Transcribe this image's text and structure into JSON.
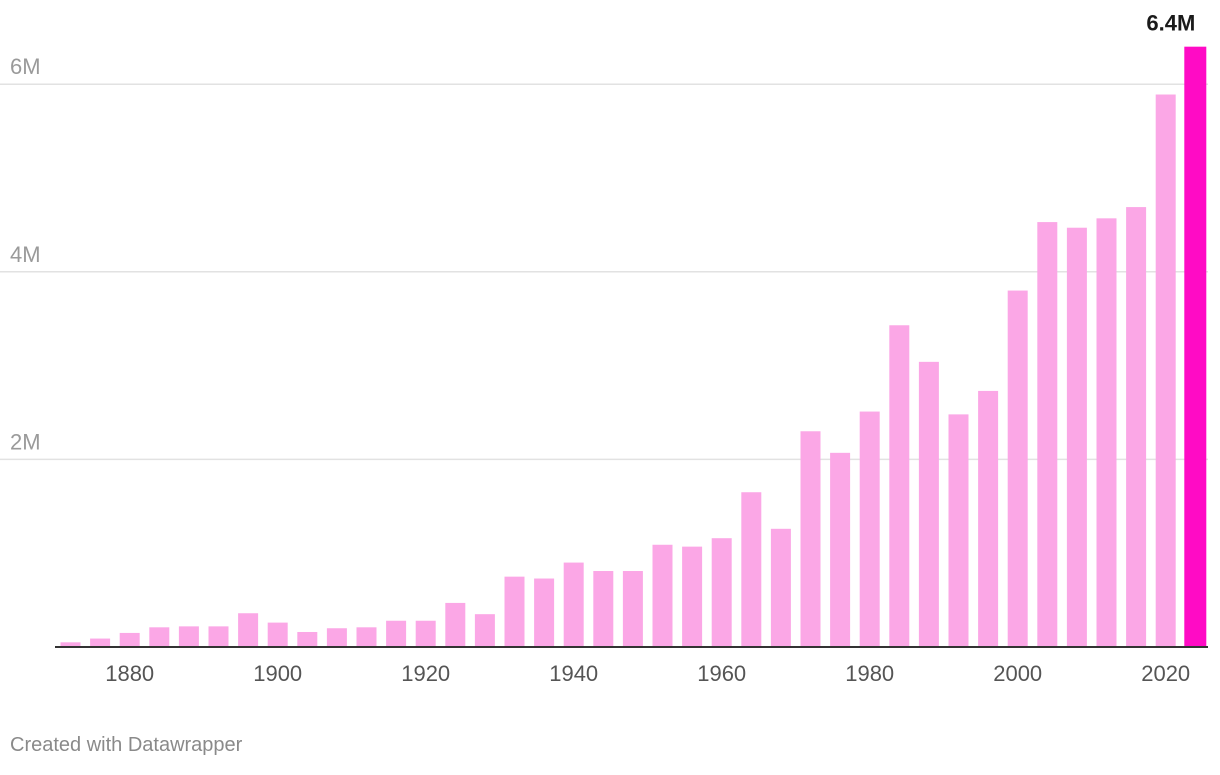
{
  "chart_data": {
    "type": "bar",
    "title": "",
    "xlabel": "",
    "ylabel": "",
    "x": [
      1872,
      1876,
      1880,
      1884,
      1888,
      1892,
      1896,
      1900,
      1904,
      1908,
      1912,
      1916,
      1920,
      1924,
      1928,
      1932,
      1936,
      1940,
      1944,
      1948,
      1952,
      1956,
      1960,
      1964,
      1968,
      1972,
      1976,
      1980,
      1984,
      1988,
      1992,
      1996,
      2000,
      2004,
      2008,
      2012,
      2016,
      2020,
      2024
    ],
    "values": [
      0.05,
      0.09,
      0.15,
      0.21,
      0.22,
      0.22,
      0.36,
      0.26,
      0.16,
      0.2,
      0.21,
      0.28,
      0.28,
      0.47,
      0.35,
      0.75,
      0.73,
      0.9,
      0.81,
      0.81,
      1.09,
      1.07,
      1.16,
      1.65,
      1.26,
      2.3,
      2.07,
      2.51,
      3.43,
      3.04,
      2.48,
      2.73,
      3.8,
      4.53,
      4.47,
      4.57,
      4.69,
      5.89,
      6.4
    ],
    "unit": "M",
    "highlight": {
      "index": 38,
      "label": "6.4M"
    },
    "ylim": [
      0,
      6.4
    ],
    "yticks": [
      {
        "value": 2,
        "label": "2M"
      },
      {
        "value": 4,
        "label": "4M"
      },
      {
        "value": 6,
        "label": "6M"
      }
    ],
    "xticks": [
      {
        "value": 1880,
        "label": "1880"
      },
      {
        "value": 1900,
        "label": "1900"
      },
      {
        "value": 1920,
        "label": "1920"
      },
      {
        "value": 1940,
        "label": "1940"
      },
      {
        "value": 1960,
        "label": "1960"
      },
      {
        "value": 1980,
        "label": "1980"
      },
      {
        "value": 2000,
        "label": "2000"
      },
      {
        "value": 2020,
        "label": "2020"
      }
    ],
    "grid": true,
    "colors": {
      "bar": "#fba7e6",
      "highlight": "#ff0bc5",
      "grid": "#e2e2e2",
      "axis": "#333333",
      "tick_text": "#9a9a9a",
      "x_tick_text": "#555555",
      "label_text": "#1a1a1a"
    }
  },
  "credit": "Created with Datawrapper"
}
